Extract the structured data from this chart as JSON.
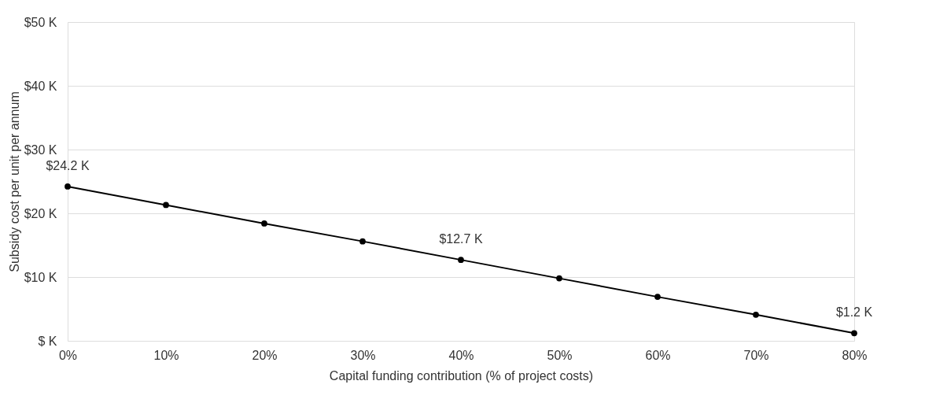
{
  "chart_data": {
    "type": "line",
    "xlabel": "Capital funding contribution (% of project costs)",
    "ylabel": "Subsidy cost per unit per annum",
    "x": [
      0,
      10,
      20,
      30,
      40,
      50,
      60,
      70,
      80
    ],
    "series": [
      {
        "color": "#000000",
        "values": [
          24.2,
          21.3,
          18.4,
          15.6,
          12.7,
          9.8,
          6.9,
          4.1,
          1.2
        ],
        "value_labels": [
          "$24.2 K",
          null,
          null,
          null,
          "$12.7 K",
          null,
          null,
          null,
          "$1.2 K"
        ]
      }
    ],
    "xlim": [
      0,
      80
    ],
    "xticks": [
      {
        "value": 0,
        "label": "0%"
      },
      {
        "value": 10,
        "label": "10%"
      },
      {
        "value": 20,
        "label": "20%"
      },
      {
        "value": 30,
        "label": "30%"
      },
      {
        "value": 40,
        "label": "40%"
      },
      {
        "value": 50,
        "label": "50%"
      },
      {
        "value": 60,
        "label": "60%"
      },
      {
        "value": 70,
        "label": "70%"
      },
      {
        "value": 80,
        "label": "80%"
      }
    ],
    "ylim": [
      0,
      50
    ],
    "yticks": [
      {
        "value": 0,
        "label": "$ K"
      },
      {
        "value": 10,
        "label": "$10 K"
      },
      {
        "value": 20,
        "label": "$20 K"
      },
      {
        "value": 30,
        "label": "$30 K"
      },
      {
        "value": 40,
        "label": "$40 K"
      },
      {
        "value": 50,
        "label": "$50 K"
      }
    ],
    "grid": "y",
    "marker": "circle",
    "line_style": "solid"
  }
}
